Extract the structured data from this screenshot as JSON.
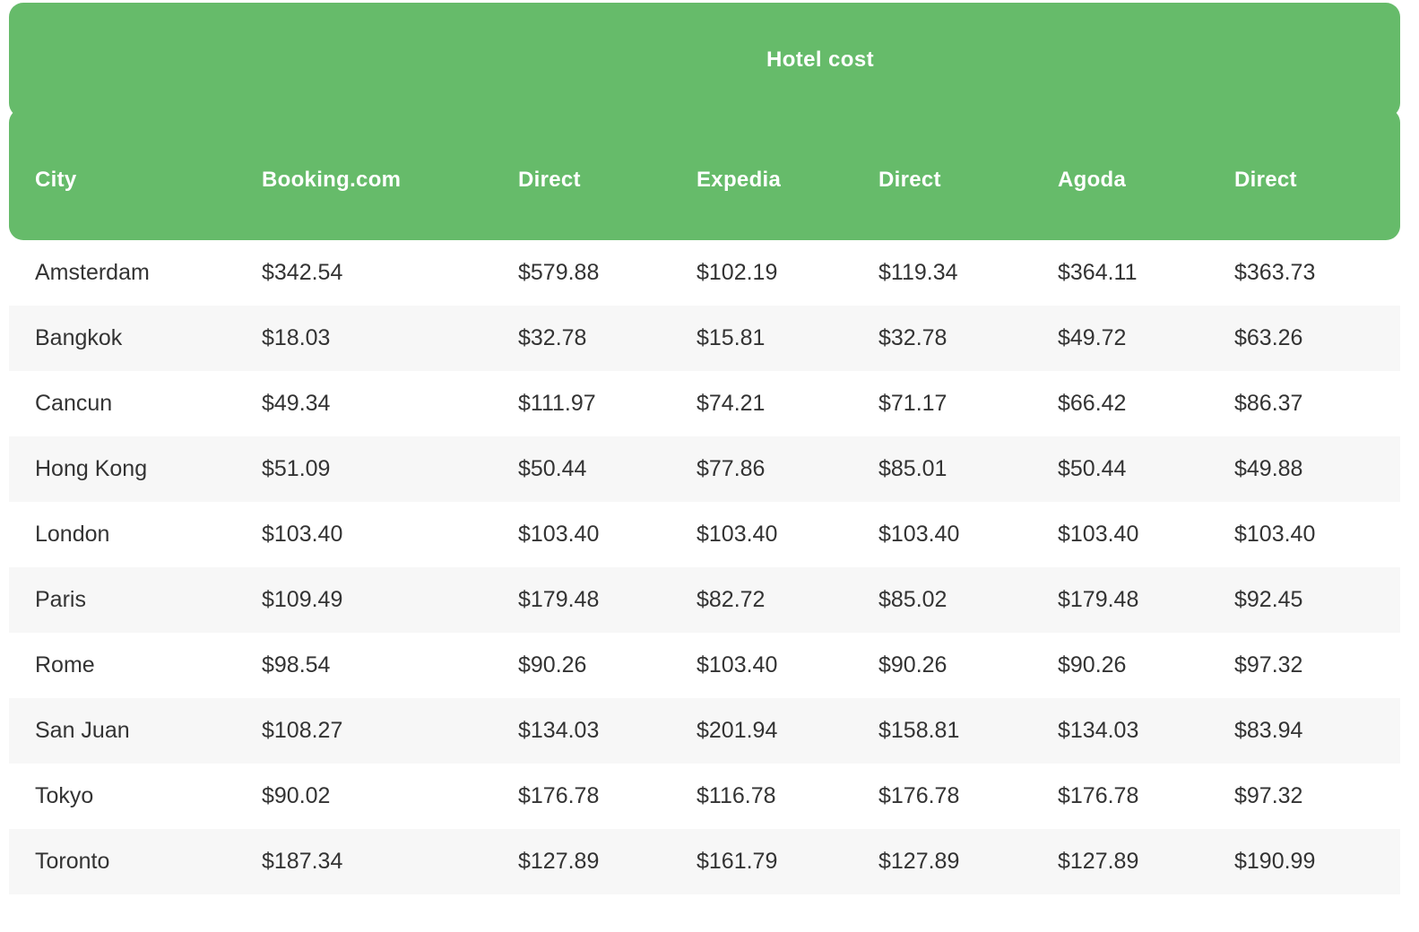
{
  "chart_data": {
    "type": "table",
    "title": "Hotel cost",
    "columns": [
      "City",
      "Booking.com",
      "Direct",
      "Expedia",
      "Direct",
      "Agoda",
      "Direct"
    ],
    "rows": [
      [
        "Amsterdam",
        "$342.54",
        "$579.88",
        "$102.19",
        "$119.34",
        "$364.11",
        "$363.73"
      ],
      [
        "Bangkok",
        "$18.03",
        "$32.78",
        "$15.81",
        "$32.78",
        "$49.72",
        "$63.26"
      ],
      [
        "Cancun",
        "$49.34",
        "$111.97",
        "$74.21",
        "$71.17",
        "$66.42",
        "$86.37"
      ],
      [
        "Hong Kong",
        "$51.09",
        "$50.44",
        "$77.86",
        "$85.01",
        "$50.44",
        "$49.88"
      ],
      [
        "London",
        "$103.40",
        "$103.40",
        "$103.40",
        "$103.40",
        "$103.40",
        "$103.40"
      ],
      [
        "Paris",
        "$109.49",
        "$179.48",
        "$82.72",
        "$85.02",
        "$179.48",
        "$92.45"
      ],
      [
        "Rome",
        "$98.54",
        "$90.26",
        "$103.40",
        "$90.26",
        "$90.26",
        "$97.32"
      ],
      [
        "San Juan",
        "$108.27",
        "$134.03",
        "$201.94",
        "$158.81",
        "$134.03",
        "$83.94"
      ],
      [
        "Tokyo",
        "$90.02",
        "$176.78",
        "$116.78",
        "$176.78",
        "$176.78",
        "$97.32"
      ],
      [
        "Toronto",
        "$187.34",
        "$127.89",
        "$161.79",
        "$127.89",
        "$127.89",
        "$190.99"
      ]
    ],
    "layout": {
      "row_striping": "alternate",
      "header_position": "top",
      "title_position": "top-banner"
    },
    "colors": {
      "accent_green": "#66bb6a",
      "stripe_gray": "#f7f7f7",
      "body_text": "#333333",
      "header_text": "#ffffff"
    }
  }
}
